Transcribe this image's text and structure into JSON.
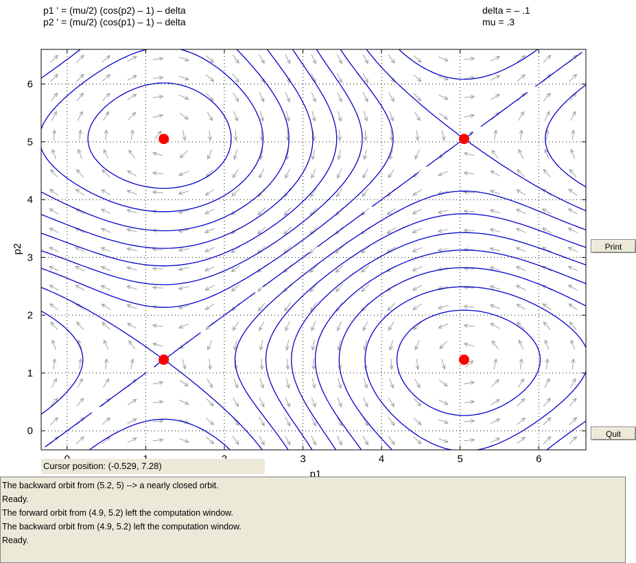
{
  "equations": {
    "line1": "p1 ' = (mu/2) (cos(p2) – 1) – delta",
    "line2": "p2 ' = (mu/2) (cos(p1) – 1) – delta"
  },
  "parameters": {
    "delta": "delta = – .1",
    "mu": "mu = .3"
  },
  "chart_data": {
    "type": "phase-portrait",
    "xlabel": "p1",
    "ylabel": "p2",
    "xlim": [
      -0.33,
      6.6
    ],
    "ylim": [
      -0.33,
      6.6
    ],
    "xticks": [
      "0",
      "1",
      "2",
      "3",
      "4",
      "5",
      "6"
    ],
    "yticks": [
      "0",
      "1",
      "2",
      "3",
      "4",
      "5",
      "6"
    ],
    "grid": true,
    "equilibria": [
      {
        "x": 1.23,
        "y": 5.05,
        "kind": "center"
      },
      {
        "x": 5.05,
        "y": 1.23,
        "kind": "center"
      },
      {
        "x": 1.23,
        "y": 1.23,
        "kind": "saddle"
      },
      {
        "x": 5.05,
        "y": 5.05,
        "kind": "saddle"
      }
    ],
    "orbit_color": "#0000c8",
    "equilibrium_color": "#ff0000",
    "arrow_color": "#a0a0a0"
  },
  "buttons": {
    "print": "Print",
    "quit": "Quit"
  },
  "cursor": {
    "text": "Cursor position:  (-0.529, 7.28)"
  },
  "messages": [
    "The backward orbit from (5.2, 5) --> a nearly closed orbit.",
    "Ready.",
    "The forward orbit from (4.9, 5.2) left the computation window.",
    "The backward orbit from (4.9, 5.2) left the computation window.",
    "Ready."
  ]
}
